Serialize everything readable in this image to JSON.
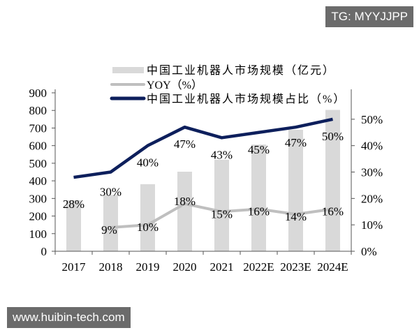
{
  "watermarks": {
    "top": "TG: MYYJJPP",
    "bottom": "www.huibin-tech.com"
  },
  "chart_data": {
    "type": "bar+line",
    "categories": [
      "2017",
      "2018",
      "2019",
      "2020",
      "2021",
      "2022E",
      "2023E",
      "2024E"
    ],
    "left_axis": {
      "ylim": [
        0,
        900
      ],
      "ticks": [
        "0",
        "100",
        "200",
        "300",
        "400",
        "500",
        "600",
        "700",
        "800",
        "900"
      ]
    },
    "right_axis": {
      "ylim": [
        0,
        60
      ],
      "ticks": [
        "0%",
        "10%",
        "20%",
        "30%",
        "40%",
        "50%"
      ]
    },
    "legend_position": "top",
    "series": [
      {
        "name": "中国工业机器人市场规模（亿元）",
        "type": "bar",
        "axis": "left",
        "color": "#d9d9d9",
        "values": [
          290,
          320,
          381,
          452,
          520,
          606,
          690,
          803
        ]
      },
      {
        "name": "YOY（%）",
        "type": "line",
        "axis": "right",
        "color": "#bfbfbf",
        "values": [
          null,
          9,
          10,
          18,
          15,
          16,
          14,
          16
        ],
        "labels": [
          "",
          "9%",
          "10%",
          "18%",
          "15%",
          "16%",
          "14%",
          "16%"
        ]
      },
      {
        "name": "中国工业机器人市场规模占比（%）",
        "type": "line",
        "axis": "right",
        "color": "#0d1f5c",
        "values": [
          28,
          30,
          40,
          47,
          43,
          45,
          47,
          50
        ],
        "labels": [
          "28%",
          "30%",
          "40%",
          "47%",
          "43%",
          "45%",
          "47%",
          "50%"
        ]
      }
    ]
  }
}
